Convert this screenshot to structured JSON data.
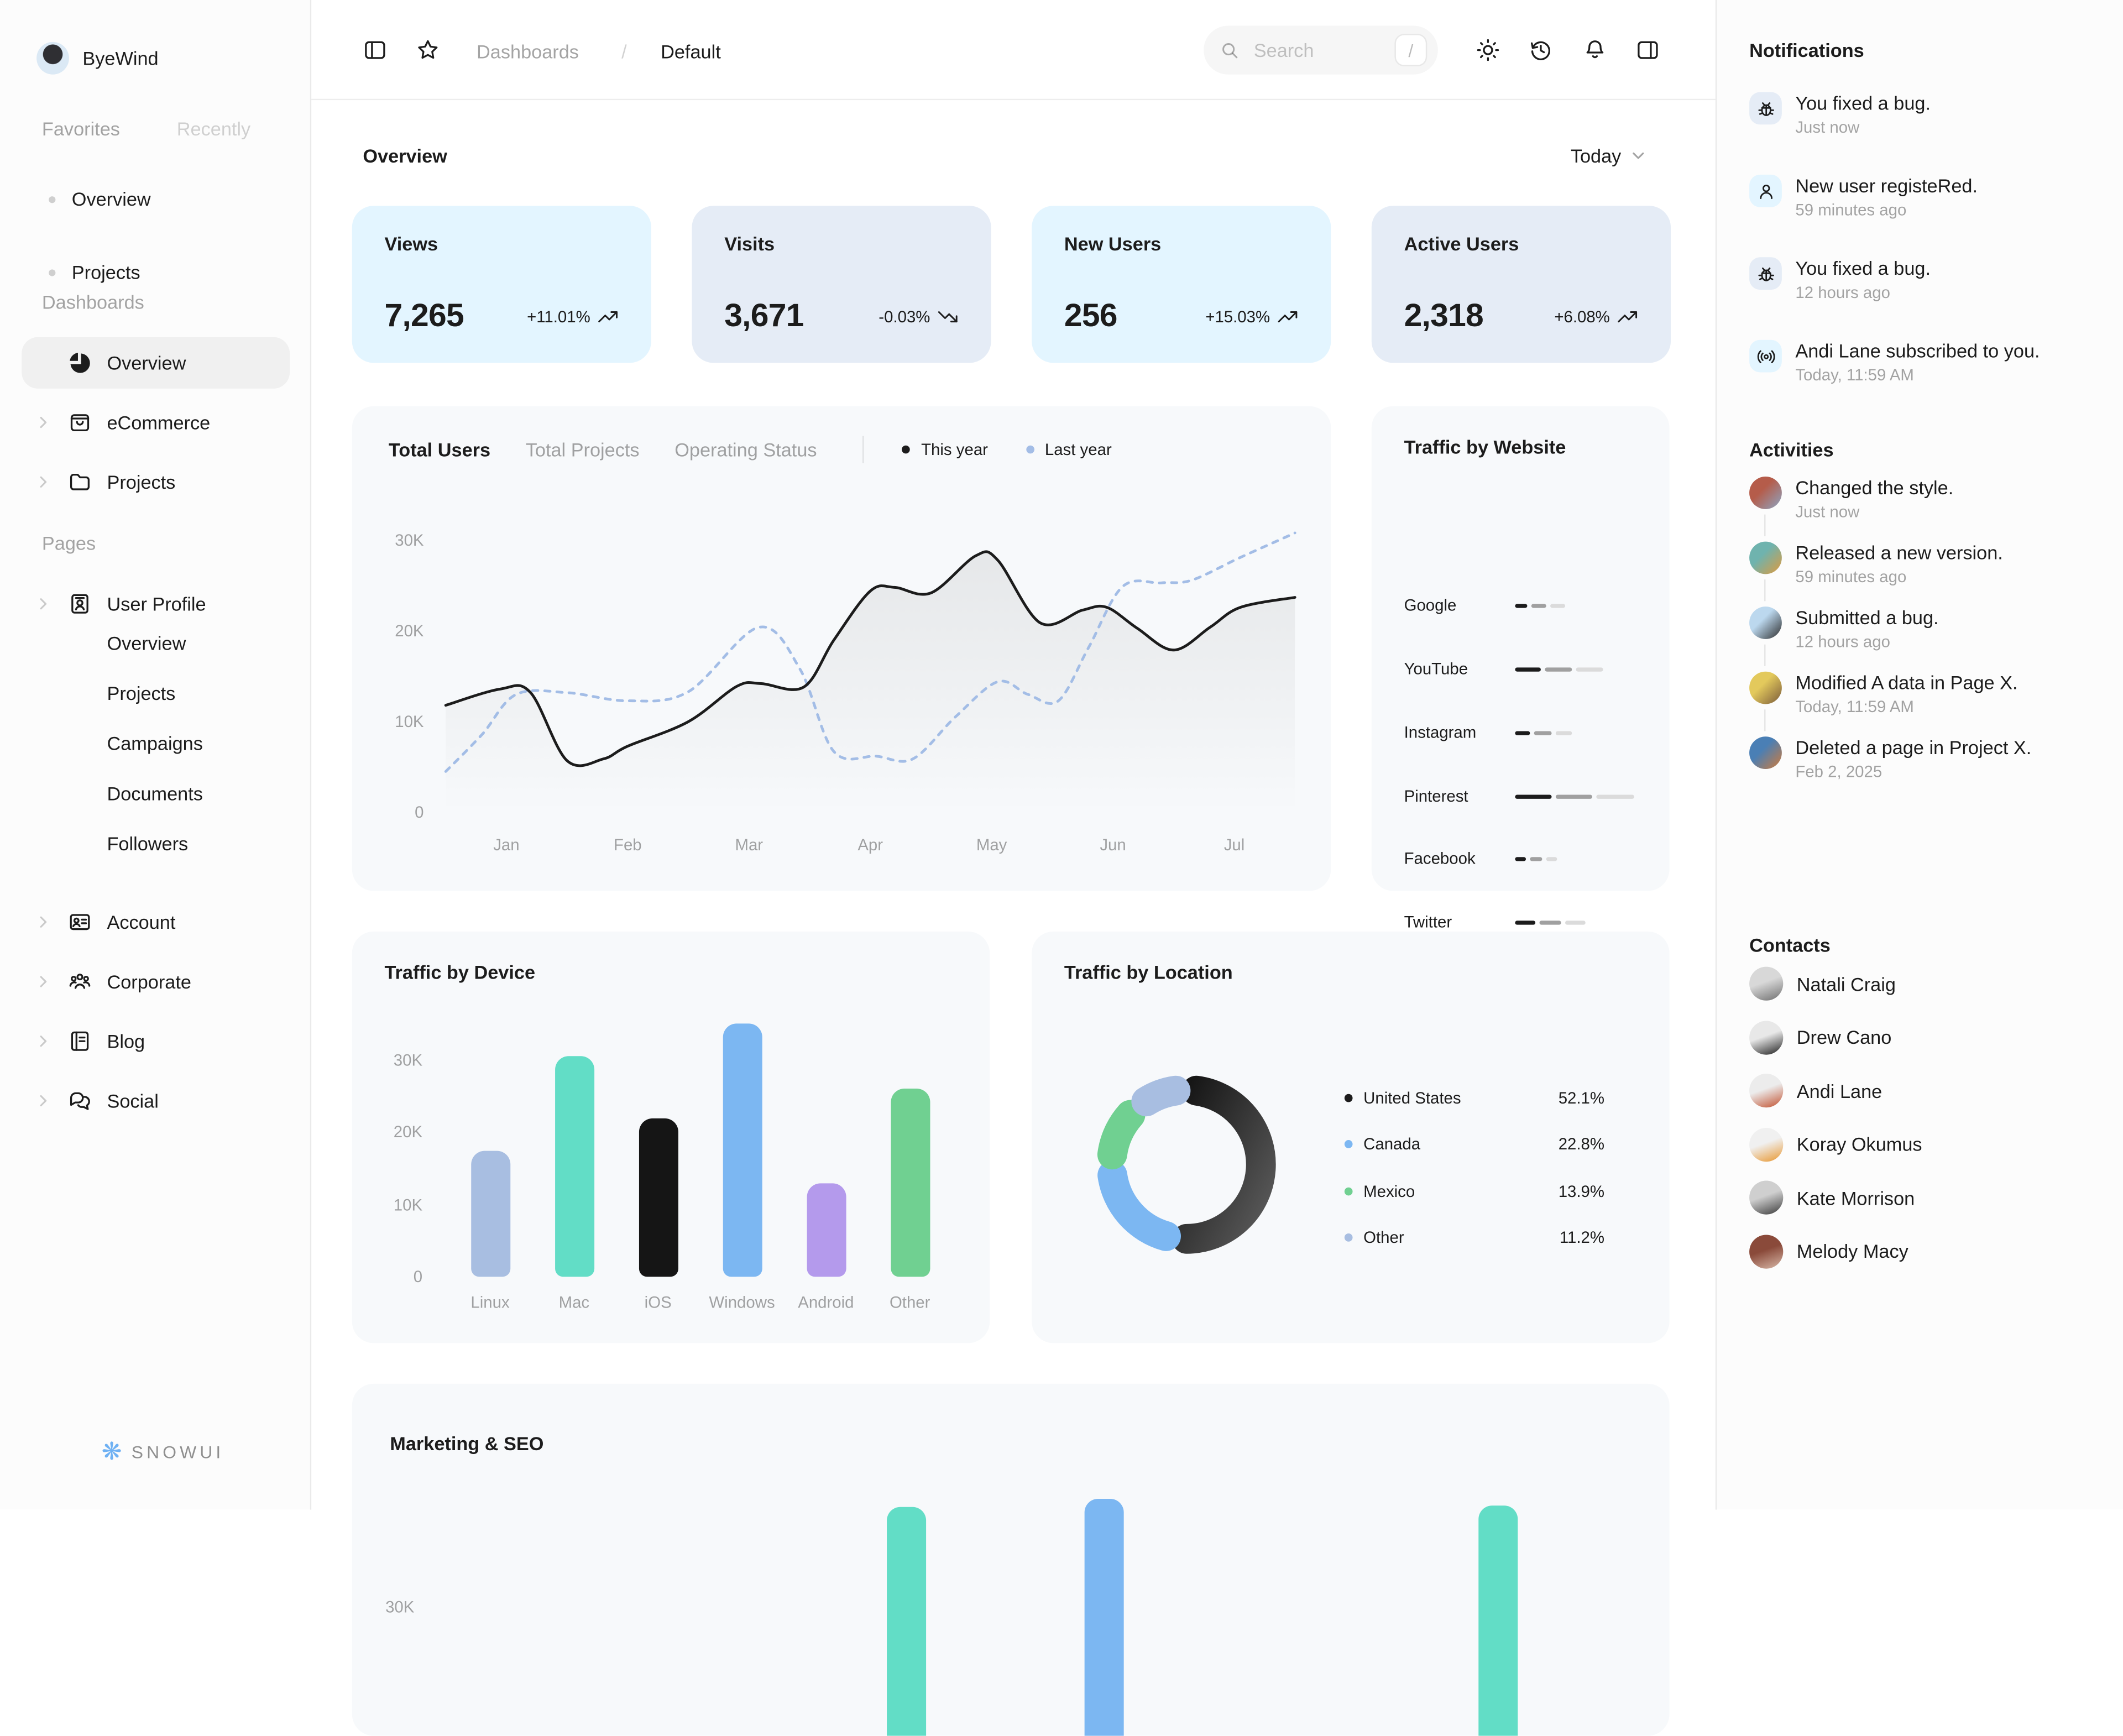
{
  "app": {
    "brand": "ByeWind",
    "logo_text": "snowui"
  },
  "sidebar": {
    "tabs": [
      {
        "label": "Favorites",
        "active": true
      },
      {
        "label": "Recently",
        "active": false
      }
    ],
    "favorites": [
      "Overview",
      "Projects"
    ],
    "sections": [
      {
        "label": "Dashboards",
        "items": [
          {
            "label": "Overview",
            "icon": "pie-chart-icon",
            "active": true,
            "chevron": false
          },
          {
            "label": "eCommerce",
            "icon": "shopping-bag-icon",
            "active": false,
            "chevron": true
          },
          {
            "label": "Projects",
            "icon": "folder-icon",
            "active": false,
            "chevron": true
          }
        ]
      },
      {
        "label": "Pages",
        "items": [
          {
            "label": "User Profile",
            "icon": "id-card-icon",
            "active": false,
            "chevron": true,
            "children": [
              "Overview",
              "Projects",
              "Campaigns",
              "Documents",
              "Followers"
            ]
          },
          {
            "label": "Account",
            "icon": "account-card-icon",
            "active": false,
            "chevron": true
          },
          {
            "label": "Corporate",
            "icon": "people-group-icon",
            "active": false,
            "chevron": true
          },
          {
            "label": "Blog",
            "icon": "notebook-icon",
            "active": false,
            "chevron": true
          },
          {
            "label": "Social",
            "icon": "chat-bubbles-icon",
            "active": false,
            "chevron": true
          }
        ]
      }
    ]
  },
  "topbar": {
    "breadcrumb": [
      {
        "label": "Dashboards",
        "muted": true
      },
      {
        "label": "Default",
        "muted": false
      }
    ],
    "separator": "/",
    "search": {
      "placeholder": "Search",
      "shortcut": "/"
    }
  },
  "main": {
    "title": "Overview",
    "period": "Today",
    "stat_cards": [
      {
        "label": "Views",
        "value": "7,265",
        "delta": "+11.01%",
        "trend": "up",
        "bg": "#E3F5FF"
      },
      {
        "label": "Visits",
        "value": "3,671",
        "delta": "-0.03%",
        "trend": "down",
        "bg": "#E5ECF6"
      },
      {
        "label": "New Users",
        "value": "256",
        "delta": "+15.03%",
        "trend": "up",
        "bg": "#E3F5FF"
      },
      {
        "label": "Active Users",
        "value": "2,318",
        "delta": "+6.08%",
        "trend": "up",
        "bg": "#E5ECF6"
      }
    ],
    "users_chart": {
      "tabs": [
        {
          "label": "Total Users",
          "active": true
        },
        {
          "label": "Total Projects",
          "active": false
        },
        {
          "label": "Operating Status",
          "active": false
        }
      ],
      "legend": [
        {
          "label": "This year",
          "color": "#1C1C1C"
        },
        {
          "label": "Last year",
          "color": "#A3BDE6"
        }
      ]
    },
    "traffic_website": {
      "title": "Traffic by Website",
      "bar_colors": [
        "#1C1C1C",
        "#A0A0A0",
        "#DBDBDB"
      ],
      "rows": [
        {
          "site": "Google",
          "segments": [
            9,
            11,
            11
          ]
        },
        {
          "site": "YouTube",
          "segments": [
            19,
            20,
            20
          ]
        },
        {
          "site": "Instagram",
          "segments": [
            11,
            13,
            12
          ]
        },
        {
          "site": "Pinterest",
          "segments": [
            27,
            27,
            28
          ]
        },
        {
          "site": "Facebook",
          "segments": [
            8,
            9,
            8
          ]
        },
        {
          "site": "Twitter",
          "segments": [
            15,
            16,
            15
          ]
        }
      ]
    },
    "marketing": {
      "title": "Marketing & SEO",
      "partial_tick": "30K"
    }
  },
  "chart_data": [
    {
      "id": "total-users",
      "type": "line",
      "title": "Total Users",
      "xlabel": "",
      "ylabel": "",
      "x_ticks": [
        "Jan",
        "Feb",
        "Mar",
        "Apr",
        "May",
        "Jun",
        "Jul"
      ],
      "y_ticks": [
        "0",
        "10K",
        "20K",
        "30K"
      ],
      "ylim": [
        0,
        33000
      ],
      "grid": false,
      "legend_position": "top",
      "series": [
        {
          "name": "This year",
          "style": "solid",
          "color": "#1C1C1C",
          "points_month_kusers": [
            [
              0.5,
              11.8
            ],
            [
              0.95,
              13.6
            ],
            [
              1.2,
              13.2
            ],
            [
              1.5,
              5.7
            ],
            [
              1.8,
              5.9
            ],
            [
              2.0,
              7.3
            ],
            [
              2.5,
              10.0
            ],
            [
              2.9,
              13.9
            ],
            [
              3.1,
              14.2
            ],
            [
              3.45,
              13.8
            ],
            [
              3.7,
              19.0
            ],
            [
              4.0,
              24.4
            ],
            [
              4.2,
              24.8
            ],
            [
              4.5,
              24.2
            ],
            [
              4.87,
              28.3
            ],
            [
              5.05,
              27.8
            ],
            [
              5.4,
              20.9
            ],
            [
              5.75,
              22.3
            ],
            [
              5.95,
              22.6
            ],
            [
              6.2,
              20.3
            ],
            [
              6.5,
              17.9
            ],
            [
              6.8,
              20.4
            ],
            [
              7.05,
              22.6
            ],
            [
              7.5,
              23.7
            ]
          ]
        },
        {
          "name": "Last year",
          "style": "dashed",
          "color": "#A3BDE6",
          "points_month_kusers": [
            [
              0.5,
              4.5
            ],
            [
              0.8,
              8.6
            ],
            [
              1.08,
              13.0
            ],
            [
              1.5,
              13.2
            ],
            [
              2.0,
              12.3
            ],
            [
              2.5,
              13.3
            ],
            [
              3.08,
              20.4
            ],
            [
              3.42,
              15.8
            ],
            [
              3.7,
              6.7
            ],
            [
              4.05,
              6.2
            ],
            [
              4.35,
              5.9
            ],
            [
              4.7,
              10.5
            ],
            [
              5.05,
              14.4
            ],
            [
              5.3,
              13.0
            ],
            [
              5.55,
              12.3
            ],
            [
              5.8,
              18.2
            ],
            [
              6.08,
              24.9
            ],
            [
              6.4,
              25.3
            ],
            [
              6.65,
              25.6
            ],
            [
              7.05,
              28.1
            ],
            [
              7.5,
              30.8
            ]
          ]
        }
      ]
    },
    {
      "id": "traffic-by-device",
      "type": "bar",
      "title": "Traffic by Device",
      "categories": [
        "Linux",
        "Mac",
        "iOS",
        "Windows",
        "Android",
        "Other"
      ],
      "values": [
        17500,
        30500,
        22000,
        35000,
        13000,
        26000
      ],
      "colors": [
        "#A8BEE1",
        "#62DDC6",
        "#151515",
        "#7CB7F2",
        "#B49AEC",
        "#70D091"
      ],
      "y_ticks": [
        "0",
        "10K",
        "20K",
        "30K"
      ],
      "ylim": [
        0,
        37000
      ],
      "grid": false
    },
    {
      "id": "traffic-by-location",
      "type": "pie",
      "title": "Traffic by Location",
      "slices": [
        {
          "label": "United States",
          "value": 52.1,
          "display": "52.1%",
          "color": "#1C1C1C"
        },
        {
          "label": "Canada",
          "value": 22.8,
          "display": "22.8%",
          "color": "#7CB7F2"
        },
        {
          "label": "Mexico",
          "value": 13.9,
          "display": "13.9%",
          "color": "#70D091"
        },
        {
          "label": "Other",
          "value": 11.2,
          "display": "11.2%",
          "color": "#A8BEE1"
        }
      ],
      "donut": true
    },
    {
      "id": "marketing-seo",
      "type": "bar",
      "title": "Marketing & SEO",
      "note": "chart cut off at viewport bottom; only 4 bar tops and 30K tick visible",
      "visible_bars": [
        {
          "x": 425,
          "top": 91,
          "color": "#62DDC6"
        },
        {
          "x": 571,
          "top": 85,
          "color": "#7CB7F2"
        },
        {
          "x": 862,
          "top": 90,
          "color": "#62DDC6"
        },
        {
          "x": 1008,
          "top": 69,
          "color": "#7CB7F2"
        }
      ]
    }
  ],
  "right_panel": {
    "notifications": {
      "title": "Notifications",
      "items": [
        {
          "icon": "bug-icon",
          "icon_bg": "#E5ECF6",
          "title": "You fixed a bug.",
          "time": "Just now"
        },
        {
          "icon": "user-icon",
          "icon_bg": "#E3F5FF",
          "title": "New user registeRed.",
          "time": "59 minutes ago"
        },
        {
          "icon": "bug-icon",
          "icon_bg": "#E5ECF6",
          "title": "You fixed a bug.",
          "time": "12 hours ago"
        },
        {
          "icon": "broadcast-icon",
          "icon_bg": "#E3F5FF",
          "title": "Andi Lane subscribed to you.",
          "time": "Today, 11:59 AM"
        }
      ]
    },
    "activities": {
      "title": "Activities",
      "items": [
        {
          "title": "Changed the style.",
          "time": "Just now",
          "avatar_colors": [
            "#B55C4A",
            "#8CA6C4"
          ]
        },
        {
          "title": "Released a new version.",
          "time": "59 minutes ago",
          "avatar_colors": [
            "#6FB3AE",
            "#E09A3C"
          ]
        },
        {
          "title": "Submitted a bug.",
          "time": "12 hours ago",
          "avatar_colors": [
            "#BCD8EE",
            "#2B2B2B"
          ]
        },
        {
          "title": "Modified A data in Page X.",
          "time": "Today, 11:59 AM",
          "avatar_colors": [
            "#E3C95C",
            "#7A5A3A"
          ]
        },
        {
          "title": "Deleted a page in Project X.",
          "time": "Feb 2, 2025",
          "avatar_colors": [
            "#4A7FB5",
            "#D07B3A"
          ]
        }
      ]
    },
    "contacts": {
      "title": "Contacts",
      "items": [
        {
          "name": "Natali Craig",
          "avatar_colors": [
            "#D8D8D8",
            "#6E6E6E"
          ]
        },
        {
          "name": "Drew Cano",
          "avatar_colors": [
            "#E8E8E8",
            "#1D1D1D"
          ]
        },
        {
          "name": "Andi Lane",
          "avatar_colors": [
            "#ECECEC",
            "#C1502E"
          ]
        },
        {
          "name": "Koray Okumus",
          "avatar_colors": [
            "#F0F0F0",
            "#E8962E"
          ]
        },
        {
          "name": "Kate Morrison",
          "avatar_colors": [
            "#CFCFCF",
            "#3A3A3A"
          ]
        },
        {
          "name": "Melody Macy",
          "avatar_colors": [
            "#8A4A3A",
            "#D8B8A8"
          ]
        }
      ]
    }
  }
}
